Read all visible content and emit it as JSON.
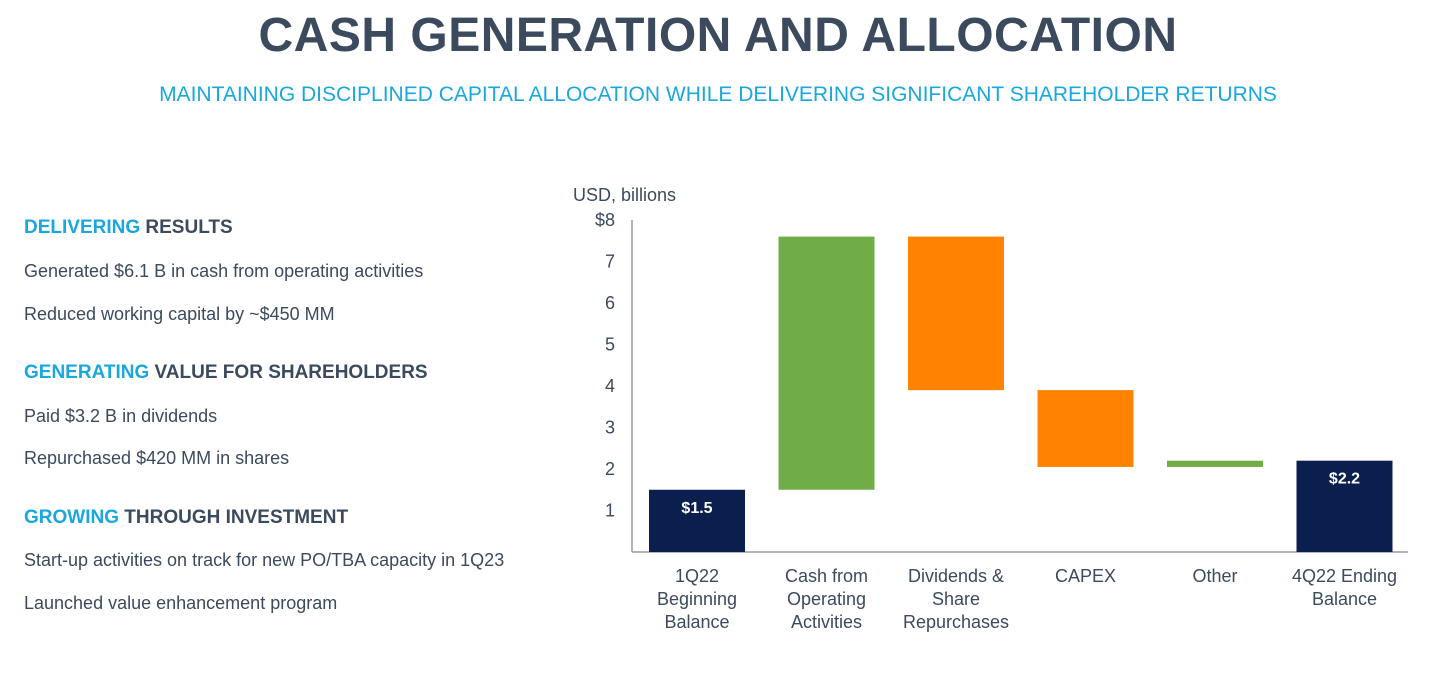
{
  "header": {
    "title": "CASH GENERATION AND ALLOCATION",
    "subtitle": "MAINTAINING DISCIPLINED CAPITAL ALLOCATION WHILE DELIVERING SIGNIFICANT SHAREHOLDER RETURNS"
  },
  "sections": [
    {
      "highlight": "DELIVERING",
      "rest": " RESULTS",
      "lines": [
        "Generated $6.1 B in cash from operating activities",
        "Reduced working capital by ~$450 MM"
      ]
    },
    {
      "highlight": "GENERATING",
      "rest": " VALUE FOR SHAREHOLDERS",
      "lines": [
        "Paid $3.2 B in dividends",
        "Repurchased $420 MM in shares"
      ]
    },
    {
      "highlight": "GROWING",
      "rest": " THROUGH INVESTMENT",
      "lines": [
        "Start-up activities on track for new PO/TBA capacity in 1Q23",
        "Launched value enhancement program"
      ]
    }
  ],
  "chart_data": {
    "type": "bar",
    "subtype": "waterfall",
    "ylabel": "USD, billions",
    "ylim": [
      0,
      8
    ],
    "ytick_labels": [
      "$8",
      "7",
      "6",
      "5",
      "4",
      "3",
      "2",
      "1"
    ],
    "ytick_values": [
      8,
      7,
      6,
      5,
      4,
      3,
      2,
      1
    ],
    "categories": [
      [
        "1Q22",
        "Beginning",
        "Balance"
      ],
      [
        "Cash from",
        "Operating",
        "Activities"
      ],
      [
        "Dividends &",
        "Share",
        "Repurchases"
      ],
      [
        "CAPEX"
      ],
      [
        "Other"
      ],
      [
        "4Q22 Ending",
        "Balance"
      ]
    ],
    "bars": [
      {
        "bottom": 0,
        "top": 1.5,
        "kind": "total",
        "label": "$1.5"
      },
      {
        "bottom": 1.5,
        "top": 7.6,
        "kind": "increase",
        "label": ""
      },
      {
        "bottom": 3.9,
        "top": 7.6,
        "kind": "decrease",
        "label": ""
      },
      {
        "bottom": 2.05,
        "top": 3.9,
        "kind": "decrease",
        "label": ""
      },
      {
        "bottom": 2.05,
        "top": 2.2,
        "kind": "increase",
        "label": ""
      },
      {
        "bottom": 0,
        "top": 2.2,
        "kind": "total",
        "label": "$2.2"
      }
    ],
    "colors": {
      "total": "#0b1f4f",
      "increase": "#70ad47",
      "decrease": "#ff8200"
    },
    "grid": false,
    "legend": "none"
  }
}
